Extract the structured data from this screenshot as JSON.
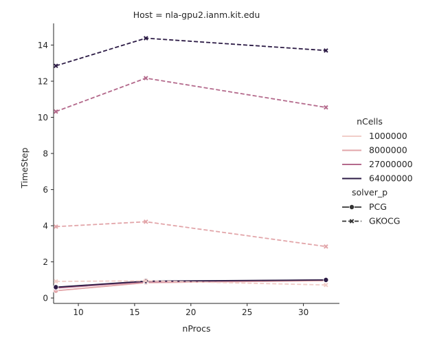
{
  "chart_data": {
    "type": "line",
    "title": "Host = nla-gpu2.ianm.kit.edu",
    "xlabel": "nProcs",
    "ylabel": "TimeStep",
    "xlim": [
      7.8,
      33.2
    ],
    "ylim": [
      -0.3,
      15.2
    ],
    "xticks": [
      10,
      15,
      20,
      25,
      30
    ],
    "yticks": [
      0,
      2,
      4,
      6,
      8,
      10,
      12,
      14
    ],
    "grid": false,
    "legend": {
      "placement": "right",
      "hue_title": "nCells",
      "hue_entries": [
        {
          "label": "1000000",
          "color": "#f1cdc8"
        },
        {
          "label": "8000000",
          "color": "#e2a5a9"
        },
        {
          "label": "27000000",
          "color": "#b46a8c"
        },
        {
          "label": "64000000",
          "color": "#2c1b45"
        }
      ],
      "style_title": "solver_p",
      "style_entries": [
        {
          "label": "PCG",
          "marker": "circle",
          "dash": "solid"
        },
        {
          "label": "GKOCG",
          "marker": "x",
          "dash": "dashed"
        }
      ]
    },
    "series": [
      {
        "color": "#f1cdc8",
        "marker": "circle",
        "dash": "solid",
        "x": [
          8,
          16,
          32
        ],
        "y": [
          0.4,
          0.85,
          0.95
        ]
      },
      {
        "color": "#e2a5a9",
        "marker": "circle",
        "dash": "solid",
        "x": [
          8,
          16,
          32
        ],
        "y": [
          0.4,
          0.85,
          0.97
        ]
      },
      {
        "color": "#b46a8c",
        "marker": "circle",
        "dash": "solid",
        "x": [
          8,
          16,
          32
        ],
        "y": [
          0.55,
          0.9,
          1.0
        ]
      },
      {
        "color": "#2c1b45",
        "marker": "circle",
        "dash": "solid",
        "x": [
          8,
          16,
          32
        ],
        "y": [
          0.6,
          0.93,
          1.0
        ]
      },
      {
        "color": "#f1cdc8",
        "marker": "x",
        "dash": "dashed",
        "x": [
          8,
          16,
          32
        ],
        "y": [
          0.92,
          0.95,
          0.72
        ]
      },
      {
        "color": "#e2a5a9",
        "marker": "x",
        "dash": "dashed",
        "x": [
          8,
          16,
          32
        ],
        "y": [
          3.95,
          4.22,
          2.85
        ]
      },
      {
        "color": "#b46a8c",
        "marker": "x",
        "dash": "dashed",
        "x": [
          8,
          16,
          32
        ],
        "y": [
          10.32,
          12.17,
          10.55
        ]
      },
      {
        "color": "#2c1b45",
        "marker": "x",
        "dash": "dashed",
        "x": [
          8,
          16,
          32
        ],
        "y": [
          12.85,
          14.38,
          13.7
        ]
      }
    ]
  }
}
